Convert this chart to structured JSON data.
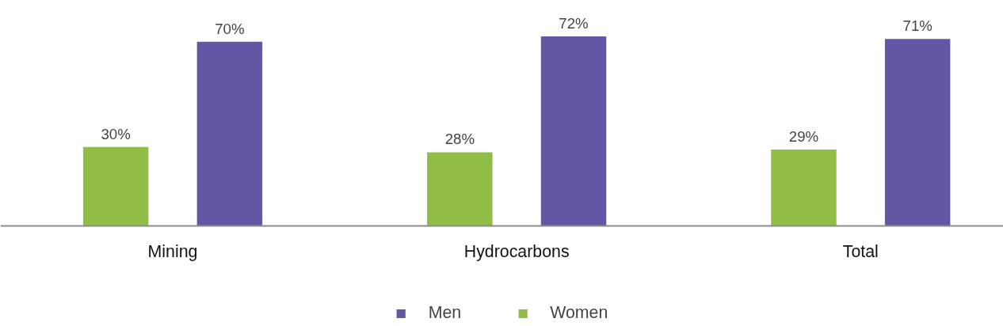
{
  "chart_data": {
    "type": "bar",
    "categories": [
      "Mining",
      "Hydrocarbons",
      "Total"
    ],
    "series": [
      {
        "name": "Women",
        "color": "#8fbd45",
        "values": [
          30,
          28,
          29
        ],
        "value_labels": [
          "30%",
          "28%",
          "29%"
        ]
      },
      {
        "name": "Men",
        "color": "#6257a5",
        "values": [
          70,
          72,
          71
        ],
        "value_labels": [
          "70%",
          "72%",
          "71%"
        ]
      }
    ],
    "legend": "bottom"
  }
}
